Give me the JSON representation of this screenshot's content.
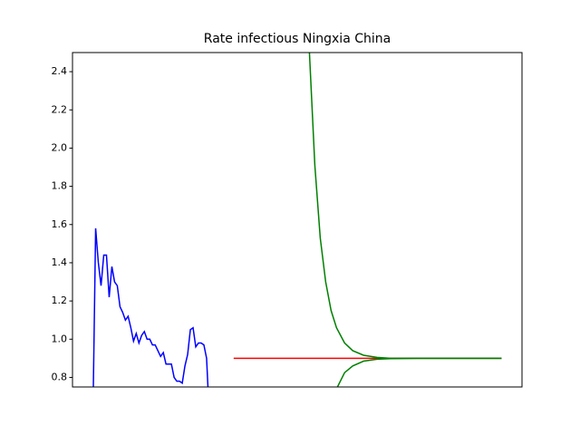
{
  "chart_data": {
    "type": "line",
    "title": "Rate infectious Ningxia China",
    "xlim": [
      -7.55,
      158.55
    ],
    "ylim": [
      0.75,
      2.5
    ],
    "yticks": [
      0.8,
      {
        "value": 1,
        "label": "1.0"
      },
      1.2,
      1.4,
      1.6,
      1.8,
      {
        "value": 2,
        "label": "2.0"
      },
      2.2,
      2.4
    ],
    "series": [
      {
        "color": "#0000ff",
        "x": [
          0,
          1,
          2,
          3,
          4,
          5,
          6,
          7,
          8,
          9,
          10,
          11,
          12,
          13,
          14,
          15,
          16,
          17,
          18,
          19,
          20,
          21,
          22,
          23,
          24,
          25,
          26,
          27,
          28,
          29,
          30,
          31,
          32,
          33,
          34,
          35,
          36,
          37,
          38,
          39,
          40,
          41,
          42,
          43
        ],
        "values": [
          0.6,
          1.58,
          1.4,
          1.28,
          1.44,
          1.44,
          1.22,
          1.38,
          1.3,
          1.28,
          1.17,
          1.14,
          1.1,
          1.12,
          1.06,
          0.99,
          1.03,
          0.98,
          1.02,
          1.04,
          1.0,
          1.0,
          0.97,
          0.97,
          0.94,
          0.91,
          0.93,
          0.87,
          0.87,
          0.87,
          0.8,
          0.78,
          0.78,
          0.77,
          0.86,
          0.92,
          1.05,
          1.06,
          0.96,
          0.98,
          0.98,
          0.97,
          0.9,
          0.6
        ]
      },
      {
        "color": "#ff0000",
        "x": [
          52,
          151
        ],
        "values": [
          0.9,
          0.9
        ]
      },
      {
        "color": "#008000",
        "x": [
          79,
          80,
          82,
          84,
          86,
          88,
          90,
          93,
          96,
          100,
          105,
          110,
          120,
          130,
          140,
          151
        ],
        "values": [
          2.88,
          2.5,
          1.91,
          1.53,
          1.3,
          1.15,
          1.06,
          0.98,
          0.94,
          0.916,
          0.905,
          0.9,
          0.9,
          0.9,
          0.9,
          0.9
        ]
      },
      {
        "color": "#008000",
        "x": [
          89,
          90,
          93,
          96,
          100,
          105,
          110,
          120,
          130,
          140,
          151
        ],
        "values": [
          0.7,
          0.74,
          0.825,
          0.86,
          0.885,
          0.895,
          0.898,
          0.9,
          0.9,
          0.9,
          0.9
        ]
      }
    ]
  }
}
